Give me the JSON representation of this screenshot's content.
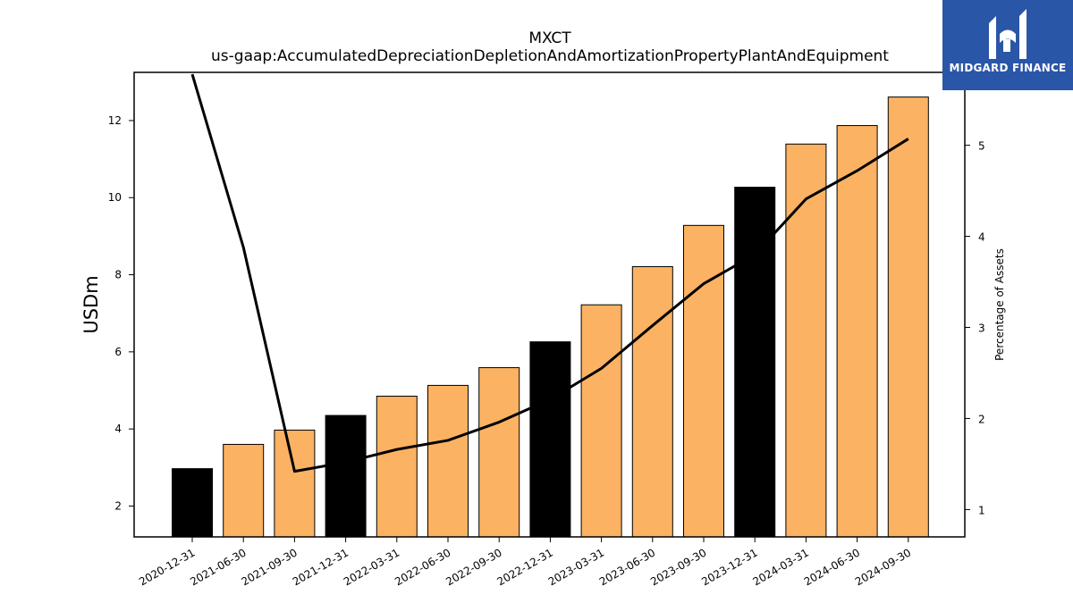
{
  "chart_data": {
    "type": "bar",
    "title": "MXCT",
    "subtitle": "us-gaap:AccumulatedDepreciationDepletionAndAmortizationPropertyPlantAndEquipment",
    "ylabel": "USDm",
    "y2label": "Percentage of Assets",
    "categories": [
      "2020-12-31",
      "2021-06-30",
      "2021-09-30",
      "2021-12-31",
      "2022-03-31",
      "2022-06-30",
      "2022-09-30",
      "2022-12-31",
      "2023-03-31",
      "2023-06-30",
      "2023-09-30",
      "2023-12-31",
      "2024-03-31",
      "2024-06-30",
      "2024-09-30"
    ],
    "series": [
      {
        "type": "bar",
        "values": [
          2.97,
          3.6,
          3.97,
          4.35,
          4.85,
          5.13,
          5.59,
          6.26,
          7.22,
          8.21,
          9.28,
          10.27,
          11.39,
          11.87,
          12.61
        ],
        "colors": [
          "#000000",
          "#fbb262",
          "#fbb262",
          "#000000",
          "#fbb262",
          "#fbb262",
          "#fbb262",
          "#000000",
          "#fbb262",
          "#fbb262",
          "#fbb262",
          "#000000",
          "#fbb262",
          "#fbb262",
          "#fbb262"
        ]
      },
      {
        "type": "line",
        "axis": "right",
        "values": [
          5.78,
          3.88,
          1.42,
          1.52,
          1.66,
          1.76,
          1.96,
          2.21,
          2.55,
          3.02,
          3.48,
          3.8,
          4.41,
          4.72,
          5.07
        ],
        "color": "#000000"
      }
    ],
    "ylim": [
      1.2,
      13.25
    ],
    "yticks": [
      2,
      4,
      6,
      8,
      10,
      12
    ],
    "y2lim": [
      0.7,
      5.8
    ],
    "y2ticks": [
      1,
      2,
      3,
      4,
      5
    ],
    "grid": false
  },
  "logo": {
    "text": "MIDGARD FINANCE"
  }
}
